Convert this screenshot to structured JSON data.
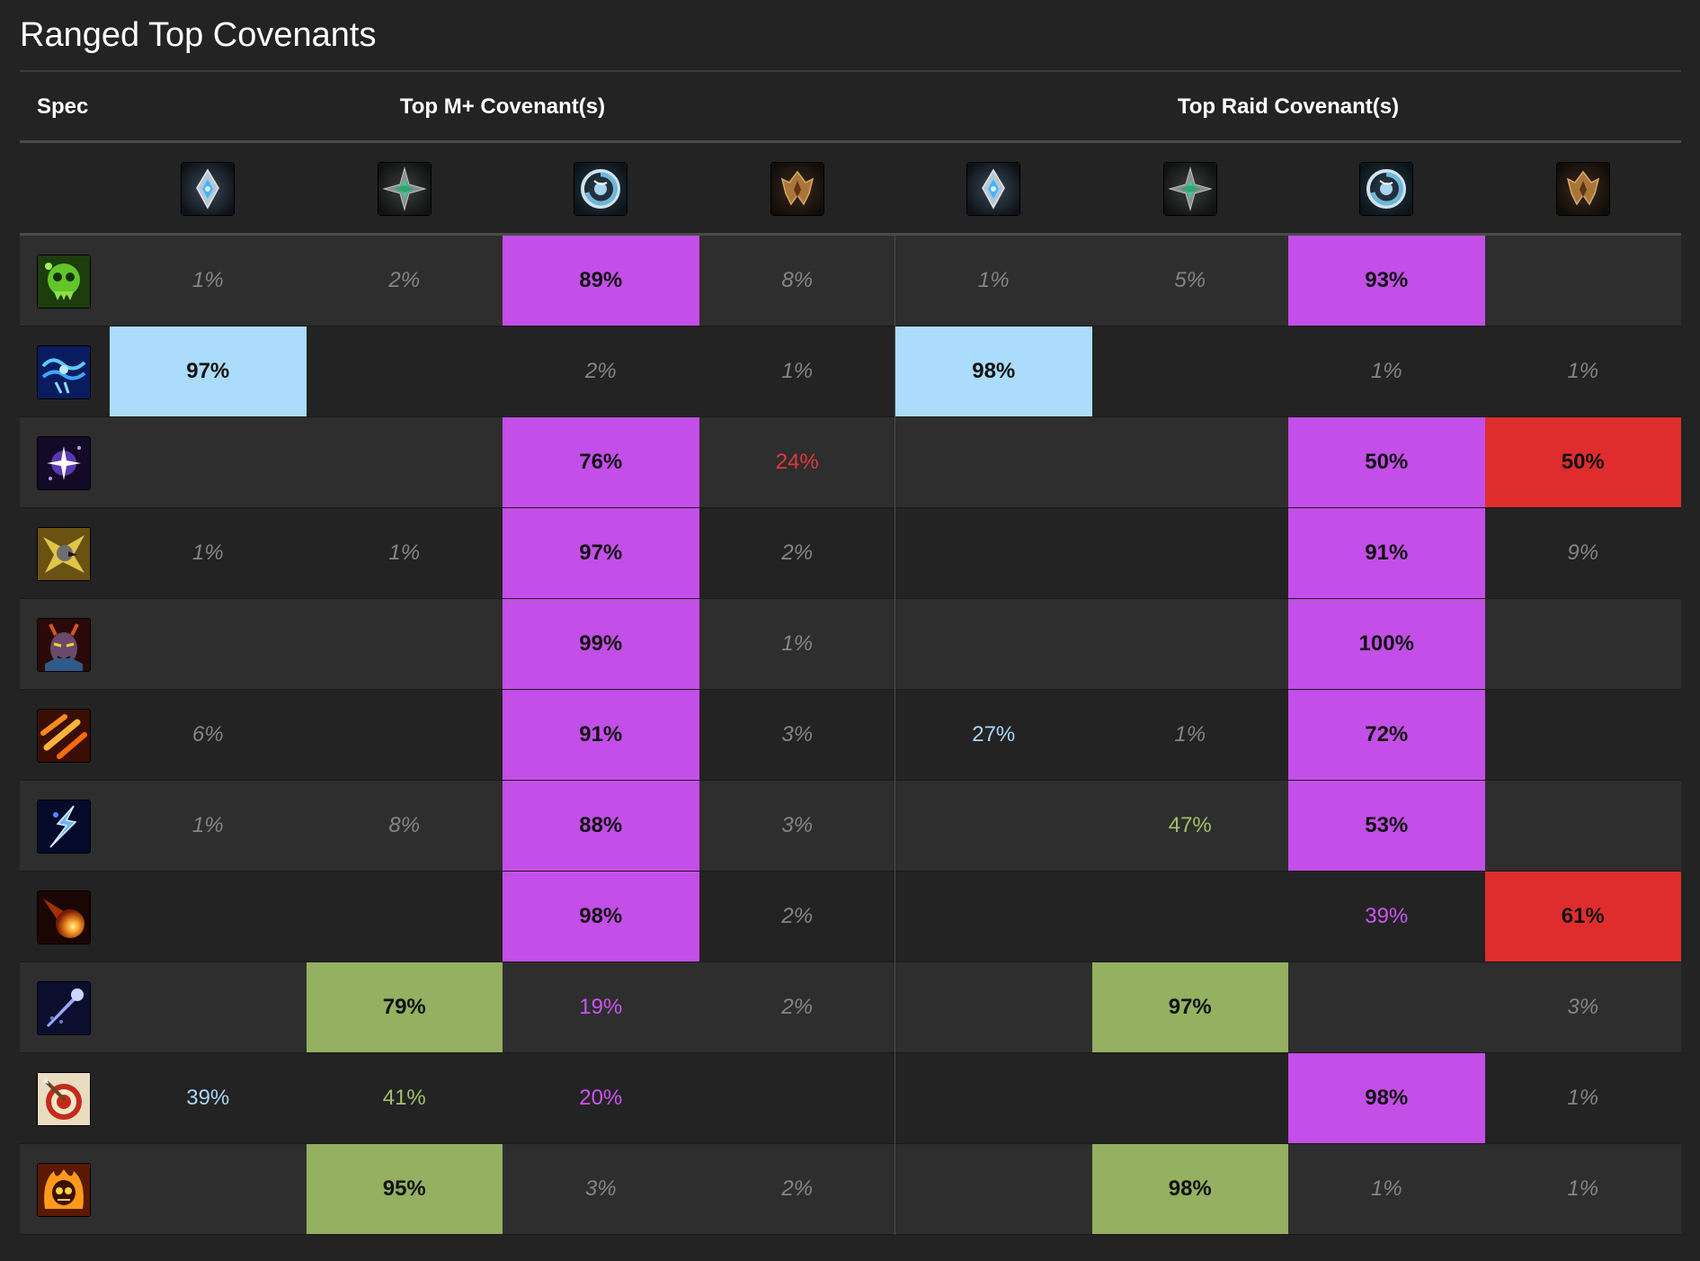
{
  "title": "Ranged Top Covenants",
  "headers": {
    "spec": "Spec",
    "mplus": "Top M+ Covenant(s)",
    "raid": "Top Raid Covenant(s)"
  },
  "covenant_icons": [
    "kyrian-icon",
    "night-fae-icon",
    "necrolord-icon",
    "venthyr-icon"
  ],
  "colors": {
    "kyrian": "#abdcfb",
    "night_fae": "#94b060",
    "necrolord": "#c44ee8",
    "venthyr": "#df2d2d"
  },
  "rows": [
    {
      "icon": "spec-green-skull-icon",
      "mplus": [
        "1%",
        "2%",
        "89%",
        "8%"
      ],
      "raid": [
        "1%",
        "5%",
        "93%",
        ""
      ]
    },
    {
      "icon": "spec-blue-wave-icon",
      "mplus": [
        "97%",
        "",
        "2%",
        "1%"
      ],
      "raid": [
        "98%",
        "",
        "1%",
        "1%"
      ]
    },
    {
      "icon": "spec-purple-star-icon",
      "mplus": [
        "",
        "",
        "76%",
        "24%"
      ],
      "raid": [
        "",
        "",
        "50%",
        "50%"
      ]
    },
    {
      "icon": "spec-hunter-eagle-icon",
      "mplus": [
        "1%",
        "1%",
        "97%",
        "2%"
      ],
      "raid": [
        "",
        "",
        "91%",
        "9%"
      ]
    },
    {
      "icon": "spec-demon-face-icon",
      "mplus": [
        "",
        "",
        "99%",
        "1%"
      ],
      "raid": [
        "",
        "",
        "100%",
        ""
      ]
    },
    {
      "icon": "spec-fire-streaks-icon",
      "mplus": [
        "6%",
        "",
        "91%",
        "3%"
      ],
      "raid": [
        "27%",
        "1%",
        "72%",
        ""
      ]
    },
    {
      "icon": "spec-lightning-icon",
      "mplus": [
        "1%",
        "8%",
        "88%",
        "3%"
      ],
      "raid": [
        "",
        "47%",
        "53%",
        ""
      ]
    },
    {
      "icon": "spec-fireball-icon",
      "mplus": [
        "",
        "",
        "98%",
        "2%"
      ],
      "raid": [
        "",
        "",
        "39%",
        "61%"
      ]
    },
    {
      "icon": "spec-frost-bolt-icon",
      "mplus": [
        "",
        "79%",
        "19%",
        "2%"
      ],
      "raid": [
        "",
        "97%",
        "",
        "3%"
      ]
    },
    {
      "icon": "spec-target-icon",
      "mplus": [
        "39%",
        "41%",
        "20%",
        ""
      ],
      "raid": [
        "",
        "",
        "98%",
        "1%"
      ]
    },
    {
      "icon": "spec-flaming-skull-icon",
      "mplus": [
        "",
        "95%",
        "3%",
        "2%"
      ],
      "raid": [
        "",
        "98%",
        "1%",
        "1%"
      ]
    }
  ]
}
